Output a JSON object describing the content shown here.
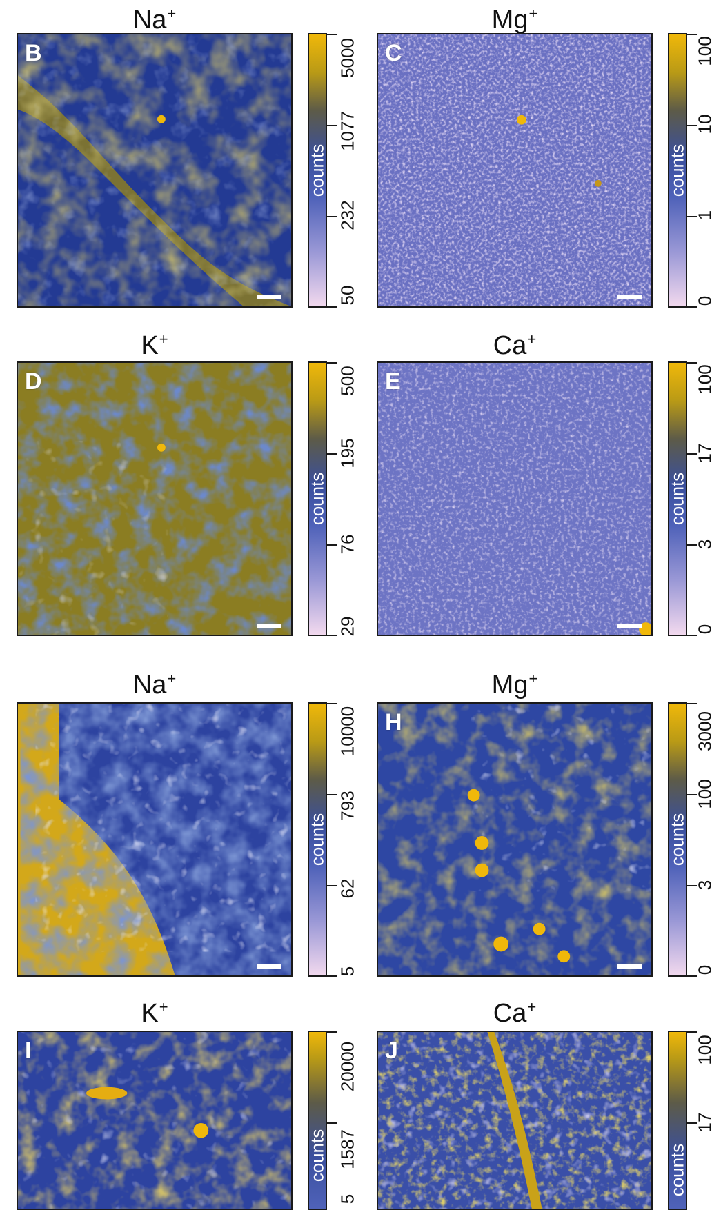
{
  "colorbar_label": "counts",
  "colors": {
    "low": "#f2d9ee",
    "mid": "#3a4f9d",
    "high": "#f0b80a",
    "olive": "#8b7d22",
    "navy": "#233a93"
  },
  "panels": [
    {
      "id": "B",
      "ion": "Na",
      "charge": "+",
      "ticks": [
        "5000",
        "1077",
        "232",
        "50"
      ]
    },
    {
      "id": "C",
      "ion": "Mg",
      "charge": "+",
      "ticks": [
        "100",
        "10",
        "1",
        "0"
      ]
    },
    {
      "id": "D",
      "ion": "K",
      "charge": "+",
      "ticks": [
        "500",
        "195",
        "76",
        "29"
      ]
    },
    {
      "id": "E",
      "ion": "Ca",
      "charge": "+",
      "ticks": [
        "100",
        "17",
        "3",
        "0"
      ]
    },
    {
      "id": "",
      "ion": "Na",
      "charge": "+",
      "ticks": [
        "10000",
        "793",
        "62",
        "5"
      ]
    },
    {
      "id": "H",
      "ion": "Mg",
      "charge": "+",
      "ticks": [
        "3000",
        "100",
        "3",
        "0"
      ]
    },
    {
      "id": "I",
      "ion": "K",
      "charge": "+",
      "ticks": [
        "20000",
        "1587",
        "5"
      ]
    },
    {
      "id": "J",
      "ion": "Ca",
      "charge": "+",
      "ticks": [
        "100",
        "17"
      ]
    }
  ]
}
